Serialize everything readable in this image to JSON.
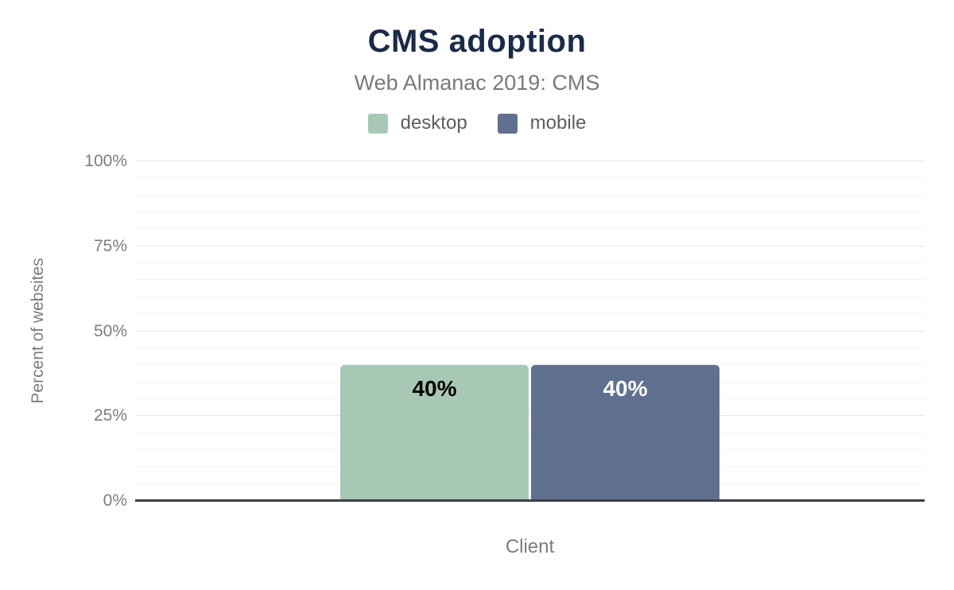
{
  "chart_data": {
    "type": "bar",
    "title": "CMS adoption",
    "subtitle": "Web Almanac 2019: CMS",
    "xlabel": "Client",
    "ylabel": "Percent of websites",
    "ylim": [
      0,
      100
    ],
    "ytick_interval_major": 25,
    "ytick_interval_minor": 5,
    "ytick_labels": [
      "0%",
      "25%",
      "50%",
      "75%",
      "100%"
    ],
    "categories": [
      "Client"
    ],
    "series": [
      {
        "name": "desktop",
        "values": [
          40
        ],
        "data_labels": [
          "40%"
        ],
        "color": "#a8c8b6",
        "data_label_color": "#000000"
      },
      {
        "name": "mobile",
        "values": [
          40
        ],
        "data_labels": [
          "40%"
        ],
        "color": "#5f718f",
        "data_label_color": "#ffffff"
      }
    ],
    "legend_position": "top",
    "grid": "horizontal, minor every 5%, major every 25%"
  },
  "style": {
    "title_color": "#1a2b49",
    "subtitle_color": "#77797e",
    "axis_text_color": "#797d82",
    "legend_text_color": "#5b5d61",
    "axis_line_color": "#3a4048",
    "gridline_minor_color": "#f4f4f4",
    "gridline_major_color": "#e6e6e6",
    "background_color": "#ffffff"
  }
}
